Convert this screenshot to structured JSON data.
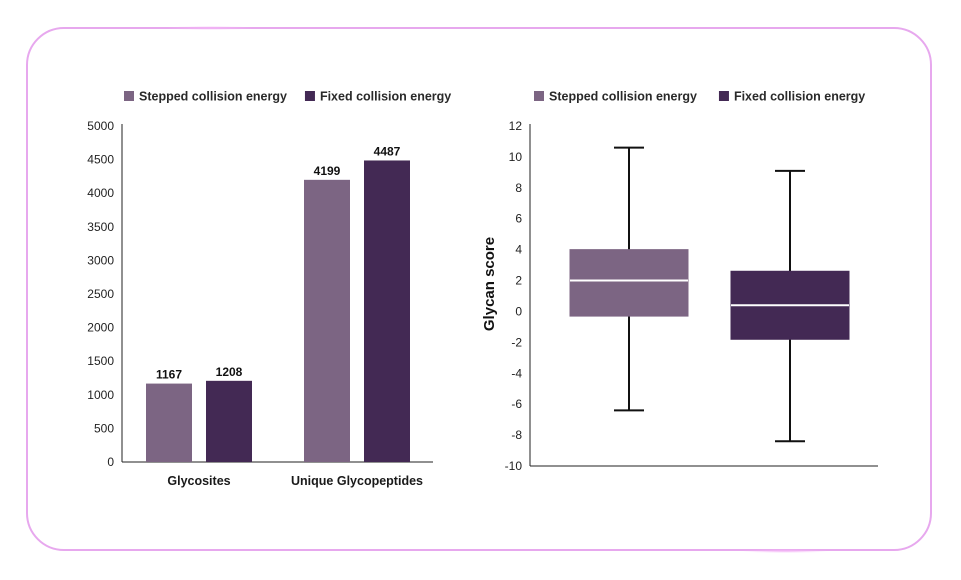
{
  "colors": {
    "stepped": "#7c6583",
    "fixed": "#432954",
    "frame": "#e7a8ee",
    "axis": "#222222"
  },
  "chart_data": [
    {
      "type": "bar",
      "title": "",
      "xlabel": "",
      "ylabel": "",
      "ylim": [
        0,
        5000
      ],
      "yticks": [
        0,
        500,
        1000,
        1500,
        2000,
        2500,
        3000,
        3500,
        4000,
        4500,
        5000
      ],
      "categories": [
        "Glycosites",
        "Unique Glycopeptides"
      ],
      "series": [
        {
          "name": "Stepped collision energy",
          "values": [
            1167,
            4199
          ],
          "labels": [
            "1167",
            "4199"
          ]
        },
        {
          "name": "Fixed collision energy",
          "values": [
            1208,
            4487
          ],
          "labels": [
            "1208",
            "4487"
          ]
        }
      ],
      "legend": [
        "Stepped collision energy",
        "Fixed collision energy"
      ],
      "legend_position": "top"
    },
    {
      "type": "box",
      "title": "",
      "xlabel": "",
      "ylabel": "Glycan score",
      "ylim": [
        -10,
        12
      ],
      "yticks": [
        12,
        10,
        8,
        6,
        4,
        2,
        0,
        -2,
        -4,
        -6,
        -8,
        -10
      ],
      "series": [
        {
          "name": "Stepped collision energy",
          "min": -6.4,
          "q1": -0.3,
          "median": 2.0,
          "q3": 4.0,
          "max": 10.6
        },
        {
          "name": "Fixed collision energy",
          "min": -8.4,
          "q1": -1.8,
          "median": 0.4,
          "q3": 2.6,
          "max": 9.1
        }
      ],
      "legend": [
        "Stepped collision energy",
        "Fixed collision energy"
      ],
      "legend_position": "top"
    }
  ]
}
